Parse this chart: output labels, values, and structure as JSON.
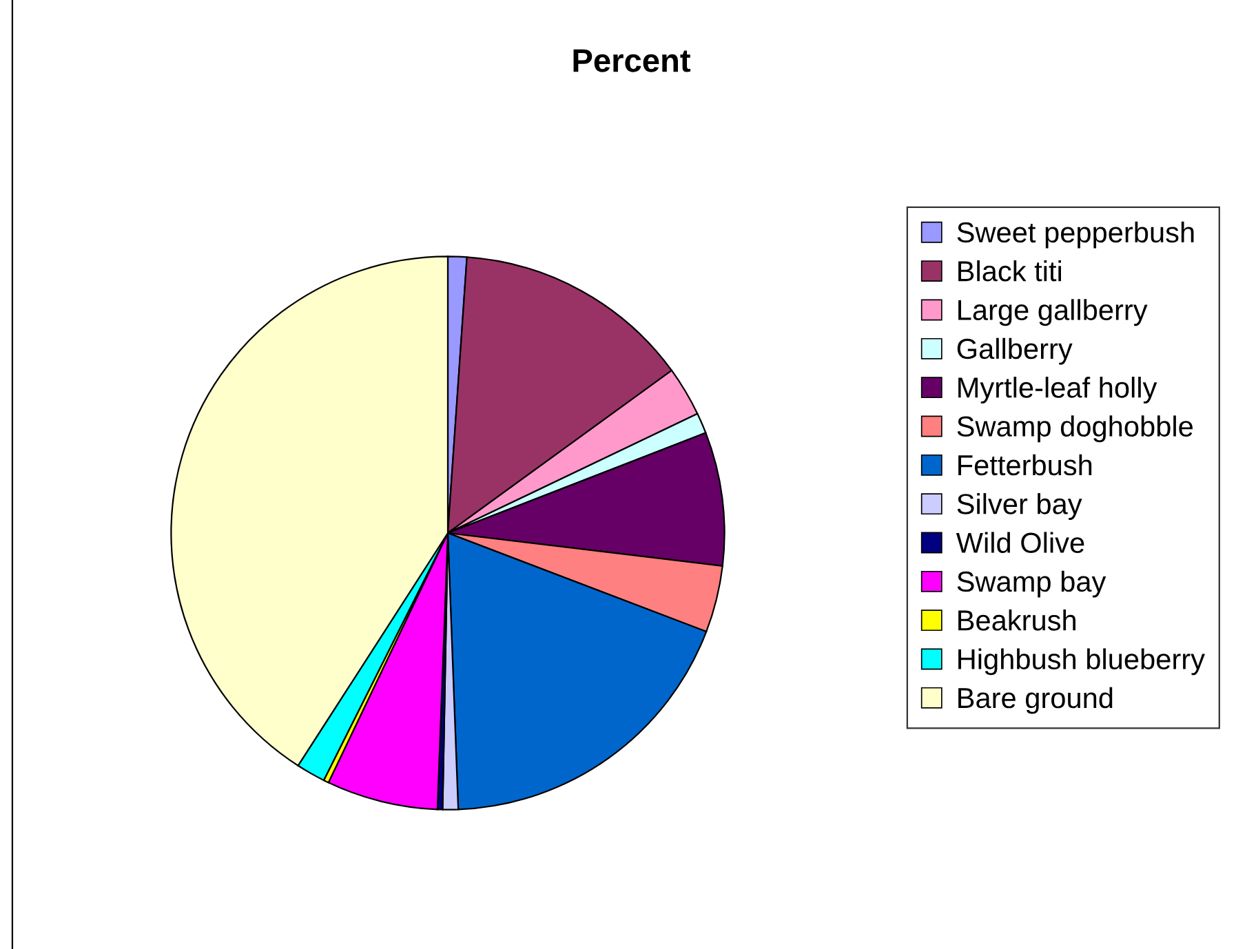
{
  "chart_data": {
    "type": "pie",
    "title": "Percent",
    "categories": [
      "Sweet pepperbush",
      "Black titi",
      "Large gallberry",
      "Gallberry",
      "Myrtle-leaf holly",
      "Swamp doghobble",
      "Fetterbush",
      "Silver bay",
      "Wild Olive",
      "Swamp bay",
      "Beakrush",
      "Highbush blueberry",
      "Bare ground"
    ],
    "values": [
      1.1,
      13.9,
      2.9,
      1.2,
      7.8,
      3.9,
      18.6,
      0.9,
      0.3,
      6.5,
      0.3,
      1.7,
      40.9
    ],
    "colors": [
      "#9999ff",
      "#993366",
      "#ff99cc",
      "#ccffff",
      "#660066",
      "#ff8080",
      "#0066cc",
      "#ccccff",
      "#000080",
      "#ff00ff",
      "#ffff00",
      "#00ffff",
      "#ffffcc"
    ],
    "legend": "right"
  }
}
